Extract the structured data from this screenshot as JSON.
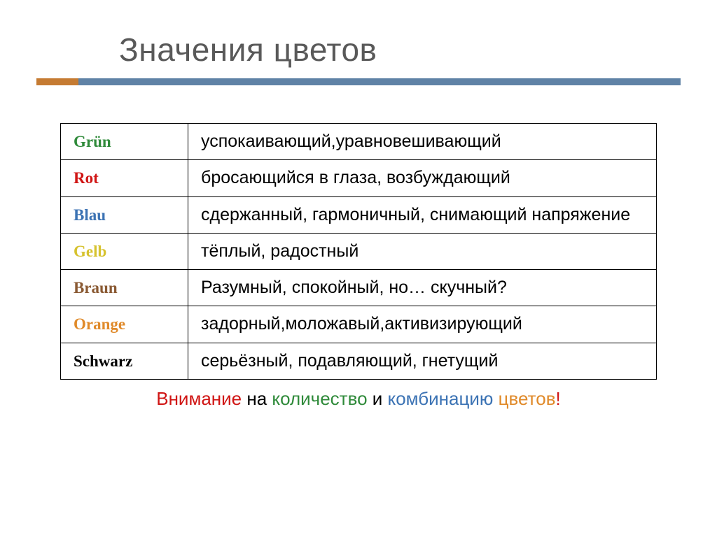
{
  "title": "Значения цветов",
  "accent": {
    "short_color": "#c57b32",
    "long_color": "#5f82a6"
  },
  "table": {
    "rows": [
      {
        "name": "Grün",
        "name_color": "#2f8a3a",
        "meaning": "успокаивающий,уравновешивающий"
      },
      {
        "name": "Rot",
        "name_color": "#d01514",
        "meaning": "бросающийся в глаза, возбуждающий"
      },
      {
        "name": "Blau",
        "name_color": "#3c73b4",
        "meaning": "сдержанный, гармоничный, снимающий напряжение"
      },
      {
        "name": "Gelb",
        "name_color": "#d6c22e",
        "meaning": "тёплый, радостный"
      },
      {
        "name": "Braun",
        "name_color": "#8a5a33",
        "meaning": "Разумный, спокойный, но… скучный?"
      },
      {
        "name": "Orange",
        "name_color": "#e08a2a",
        "meaning": "задорный,моложавый,активизирующий"
      },
      {
        "name": "Schwarz",
        "name_color": "#000000",
        "meaning": "серьёзный, подавляющий, гнетущий"
      }
    ]
  },
  "footnote": {
    "segments": [
      {
        "text": "Внимание ",
        "color": "#d01514"
      },
      {
        "text": "на ",
        "color": "#000000"
      },
      {
        "text": "количество ",
        "color": "#2f8a3a"
      },
      {
        "text": "и ",
        "color": "#000000"
      },
      {
        "text": "комбинацию ",
        "color": "#3c73b4"
      },
      {
        "text": "цветов",
        "color": "#e08a2a"
      },
      {
        "text": "!",
        "color": "#d01514"
      }
    ]
  }
}
